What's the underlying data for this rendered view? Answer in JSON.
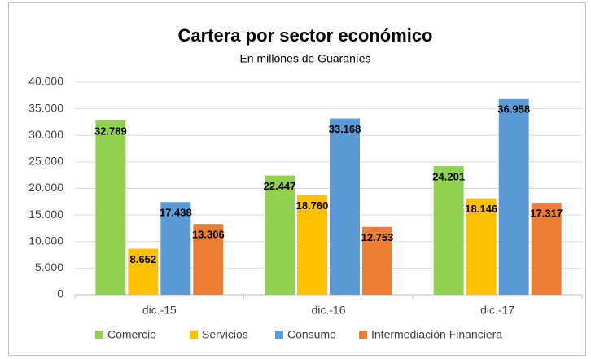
{
  "chart_data": {
    "type": "bar",
    "title": "Cartera por sector económico",
    "subtitle": "En millones de Guaraníes",
    "categories": [
      "dic.-15",
      "dic.-16",
      "dic.-17"
    ],
    "series": [
      {
        "name": "Comercio",
        "color": "#92d050",
        "values": [
          32789,
          22447,
          24201
        ],
        "value_labels": [
          "32.789",
          "22.447",
          "24.201"
        ]
      },
      {
        "name": "Servicios",
        "color": "#ffc000",
        "values": [
          8652,
          18760,
          18146
        ],
        "value_labels": [
          "8.652",
          "18.760",
          "18.146"
        ]
      },
      {
        "name": "Consumo",
        "color": "#5b9bd5",
        "values": [
          17438,
          33168,
          36958
        ],
        "value_labels": [
          "17.438",
          "33.168",
          "36.958"
        ]
      },
      {
        "name": "Intermediación Financiera",
        "color": "#ed7d31",
        "values": [
          13306,
          12753,
          17317
        ],
        "value_labels": [
          "13.306",
          "12.753",
          "17.317"
        ]
      }
    ],
    "ylim": [
      0,
      40000
    ],
    "yticks": [
      0,
      {
        "value": 5000,
        "label": "5.000"
      },
      {
        "value": 10000,
        "label": "10.000"
      },
      {
        "value": 15000,
        "label": "15.000"
      },
      {
        "value": 20000,
        "label": "20.000"
      },
      {
        "value": 25000,
        "label": "25.000"
      },
      {
        "value": 30000,
        "label": "30.000"
      },
      {
        "value": 35000,
        "label": "35.000"
      },
      {
        "value": 40000,
        "label": "40.000"
      }
    ],
    "grid": true,
    "legend": "bottom"
  }
}
